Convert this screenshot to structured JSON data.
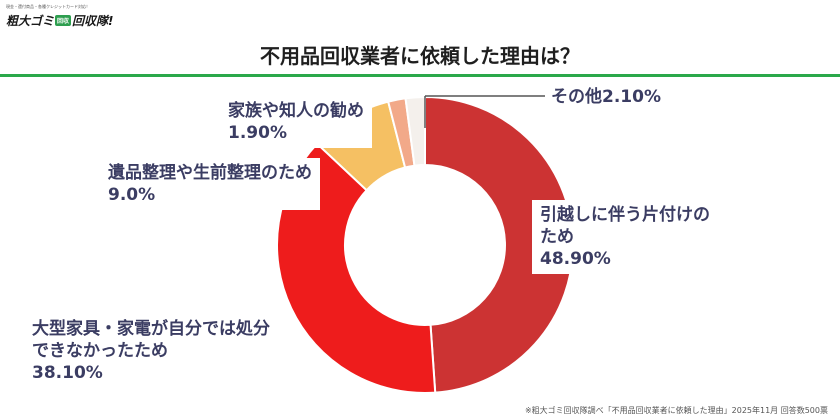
{
  "logo": {
    "tagline": "現金・還付商品・各種クレジットカード対応！",
    "name_part1": "粗大ゴミ",
    "badge": "回収",
    "name_part2": "回収隊!"
  },
  "chart_data": {
    "type": "pie",
    "title": "不用品回収業者に依頼した理由は？",
    "slices": [
      {
        "label": "引越しに伴う片付けのため",
        "value": 48.9,
        "display": "48.90%",
        "color": "#cc3333"
      },
      {
        "label": "大型家具・家電が自分では処分できなかったため",
        "value": 38.1,
        "display": "38.10%",
        "color": "#ee1c1c"
      },
      {
        "label": "遺品整理や生前整理のため",
        "value": 9.0,
        "display": "9.0%",
        "color": "#f5c063"
      },
      {
        "label": "家族や知人の勧め",
        "value": 1.9,
        "display": "1.90%",
        "color": "#f2a989"
      },
      {
        "label": "その他",
        "value": 2.1,
        "display": "2.10%",
        "color": "#f4f0ec"
      }
    ]
  },
  "labels": {
    "moving_line1": "引越しに伴う片付けの",
    "moving_line2": "ため",
    "moving_pct": "48.90%",
    "furniture_line1": "大型家具・家電が自分では処分",
    "furniture_line2": "できなかったため",
    "furniture_pct": "38.10%",
    "estate_line1": "遺品整理や生前整理のため",
    "estate_pct": "9.0%",
    "family_line1": "家族や知人の勧め",
    "family_pct": "1.90%",
    "other_line1": "その他2.10%"
  },
  "footnote": "※粗大ゴミ回収隊調べ「不用品回収業者に依頼した理由」2025年11月 回答数500票"
}
